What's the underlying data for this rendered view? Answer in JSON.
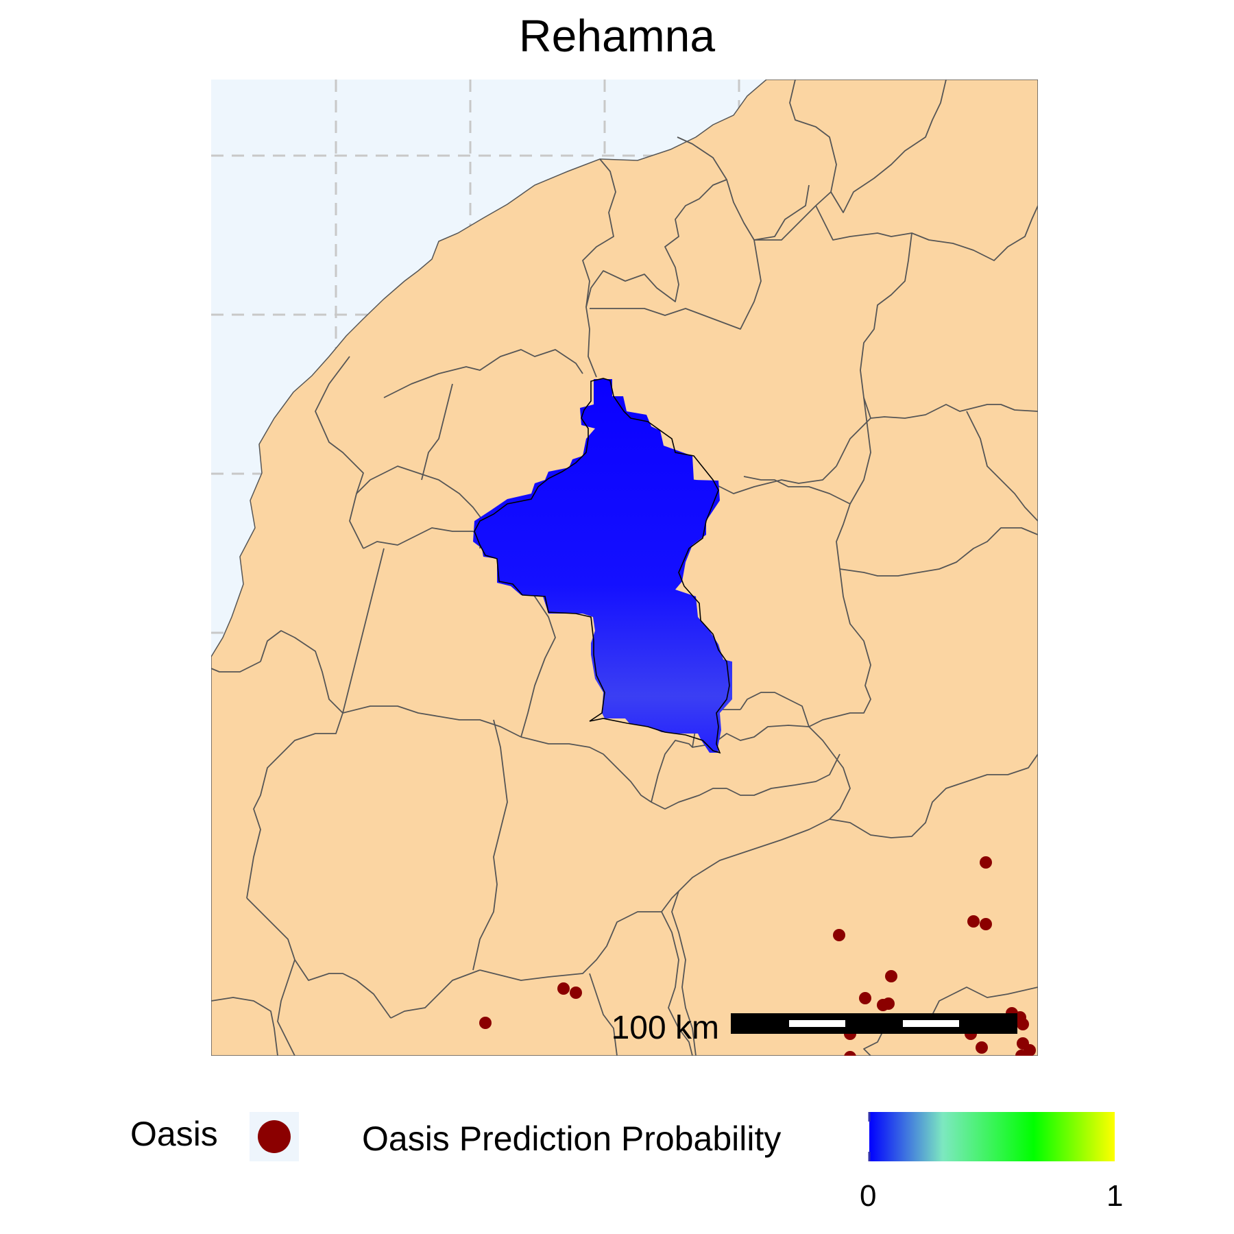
{
  "title": "Rehamna",
  "colors": {
    "sea": "#eef6fd",
    "land": "#fbd5a2",
    "border": "#555555",
    "region": "#0c00ff",
    "region_south": "#3a3df5",
    "oasis": "#8b0000",
    "grid": "#c8c8c8"
  },
  "scale_bar": {
    "label": "100 km"
  },
  "legend": {
    "oasis_label": "Oasis",
    "probability_label": "Oasis Prediction Probability",
    "colorbar": {
      "min_label": "0",
      "max_label": "1",
      "stops": [
        "#0000ff",
        "#7de8c0",
        "#00ff00",
        "#ffff00"
      ]
    }
  },
  "oasis_marker_icon": "filled-circle-icon",
  "oasis_count": 21
}
